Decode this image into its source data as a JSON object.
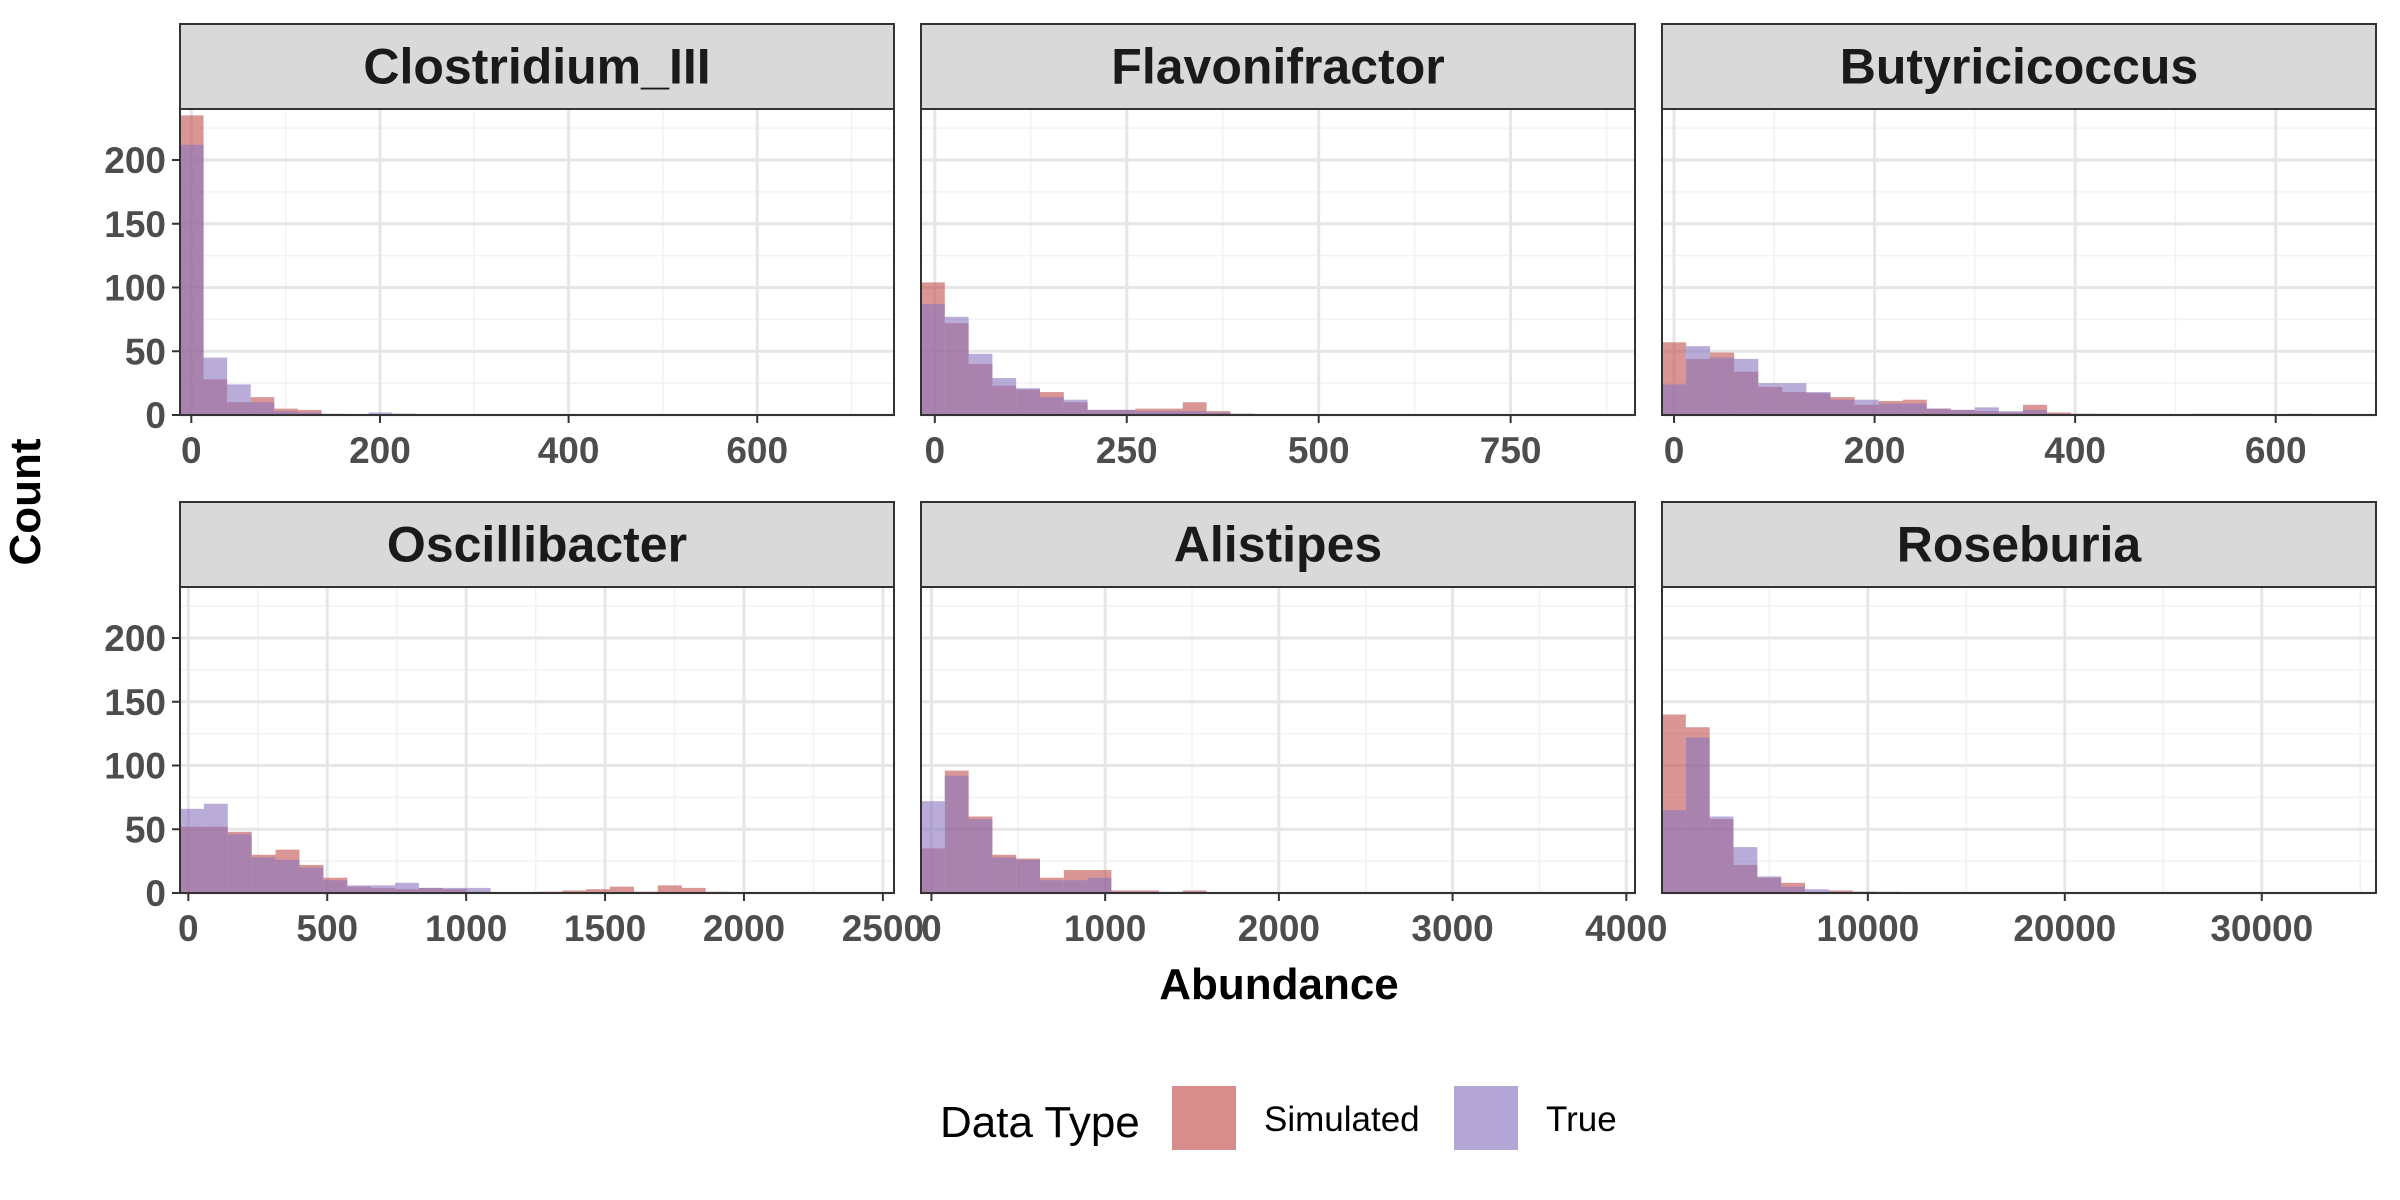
{
  "chart_data": {
    "type": "histogram-facets",
    "ylabel": "Count",
    "xlabel": "Abundance",
    "shared_y": {
      "ylim": [
        0,
        240
      ],
      "ticks": [
        0,
        50,
        100,
        150,
        200
      ]
    },
    "legend": {
      "title": "Data Type",
      "position": "bottom",
      "entries": [
        {
          "name": "Simulated",
          "color": "#c0504d"
        },
        {
          "name": "True",
          "color": "#8a74c0"
        }
      ]
    },
    "overlap_color": "#8a5a8c",
    "panels": [
      {
        "title": "Clostridium_III",
        "xlim": [
          -12,
          745
        ],
        "xticks": [
          0,
          200,
          400,
          600
        ],
        "xtick_labels": [
          "0",
          "200",
          "400",
          "600"
        ],
        "bin_start": -12,
        "bin_width": 25,
        "series": [
          {
            "name": "Simulated",
            "counts": [
              235,
              28,
              10,
              14,
              5,
              4,
              0,
              0,
              0,
              1,
              0
            ]
          },
          {
            "name": "True",
            "counts": [
              212,
              45,
              24,
              10,
              3,
              2,
              1,
              0,
              2,
              1,
              0
            ]
          }
        ]
      },
      {
        "title": "Flavonifractor",
        "xlim": [
          -18,
          912
        ],
        "xticks": [
          0,
          250,
          500,
          750
        ],
        "xtick_labels": [
          "0",
          "250",
          "500",
          "750"
        ],
        "bin_start": -18,
        "bin_width": 31,
        "series": [
          {
            "name": "Simulated",
            "counts": [
              104,
              72,
              40,
              23,
              20,
              18,
              10,
              4,
              4,
              5,
              5,
              10,
              3,
              1,
              0,
              0
            ]
          },
          {
            "name": "True",
            "counts": [
              87,
              77,
              48,
              29,
              21,
              14,
              12,
              4,
              4,
              3,
              3,
              3,
              2,
              1,
              0,
              0
            ]
          }
        ]
      },
      {
        "title": "Butyricicoccus",
        "xlim": [
          -12,
          700
        ],
        "xticks": [
          0,
          200,
          400,
          600
        ],
        "xtick_labels": [
          "0",
          "200",
          "400",
          "600"
        ],
        "bin_start": -12,
        "bin_width": 24,
        "series": [
          {
            "name": "Simulated",
            "counts": [
              57,
              44,
              49,
              34,
              22,
              18,
              17,
              14,
              8,
              11,
              12,
              5,
              4,
              3,
              2,
              8,
              2,
              1,
              0,
              0,
              0,
              0,
              0,
              0,
              0,
              0,
              0,
              0,
              0,
              0
            ]
          },
          {
            "name": "True",
            "counts": [
              24,
              54,
              45,
              44,
              25,
              25,
              18,
              12,
              12,
              9,
              9,
              5,
              4,
              6,
              3,
              4,
              1,
              1,
              1,
              0,
              0,
              0,
              1,
              1,
              0,
              0,
              1,
              0,
              0,
              0
            ]
          }
        ]
      },
      {
        "title": "Oscillibacter",
        "xlim": [
          -30,
          2540
        ],
        "xticks": [
          0,
          500,
          1000,
          1500,
          2000,
          2500
        ],
        "xtick_labels": [
          "0",
          "500",
          "1000",
          "1500",
          "2000",
          "2500"
        ],
        "bin_start": -30,
        "bin_width": 86,
        "series": [
          {
            "name": "Simulated",
            "counts": [
              52,
              52,
              48,
              30,
              34,
              22,
              12,
              5,
              4,
              3,
              4,
              3,
              1,
              0,
              0,
              1,
              2,
              3,
              5,
              1,
              6,
              4,
              1,
              0,
              0,
              0,
              0,
              0,
              0,
              0
            ]
          },
          {
            "name": "True",
            "counts": [
              66,
              70,
              46,
              28,
              26,
              20,
              10,
              6,
              6,
              8,
              4,
              4,
              4,
              0,
              0,
              0,
              0,
              0,
              0,
              0,
              0,
              0,
              0,
              0,
              0,
              0,
              0,
              0,
              0,
              0
            ]
          }
        ]
      },
      {
        "title": "Alistipes",
        "xlim": [
          -60,
          4050
        ],
        "xticks": [
          0,
          1000,
          2000,
          3000,
          4000
        ],
        "xtick_labels": [
          "0",
          "1000",
          "2000",
          "3000",
          "4000"
        ],
        "bin_start": -60,
        "bin_width": 137,
        "series": [
          {
            "name": "Simulated",
            "counts": [
              35,
              96,
              60,
              30,
              27,
              12,
              18,
              18,
              2,
              2,
              0,
              2,
              0,
              0,
              0,
              0,
              0,
              0,
              0,
              0,
              0,
              0,
              0,
              0,
              0,
              0,
              0,
              0,
              0,
              0
            ]
          },
          {
            "name": "True",
            "counts": [
              72,
              92,
              58,
              28,
              26,
              10,
              10,
              12,
              1,
              1,
              1,
              1,
              0,
              0,
              0,
              0,
              0,
              0,
              0,
              0,
              0,
              0,
              0,
              0,
              0,
              0,
              0,
              0,
              0,
              0
            ]
          }
        ]
      },
      {
        "title": "Roseburia",
        "xlim": [
          -450,
          35800
        ],
        "xticks": [
          10000,
          20000,
          30000
        ],
        "xtick_labels": [
          "10000",
          "20000",
          "30000"
        ],
        "bin_start": -450,
        "bin_width": 1210,
        "series": [
          {
            "name": "Simulated",
            "counts": [
              140,
              130,
              58,
              22,
              12,
              8,
              1,
              2,
              1,
              0,
              0,
              0,
              0,
              0,
              0,
              0,
              0,
              0,
              0,
              0,
              0,
              0,
              0,
              0,
              0,
              0,
              0,
              0,
              0,
              0
            ]
          },
          {
            "name": "True",
            "counts": [
              65,
              122,
              60,
              36,
              13,
              5,
              3,
              1,
              1,
              1,
              0,
              0,
              0,
              0,
              0,
              0,
              0,
              0,
              0,
              0,
              0,
              0,
              0,
              0,
              0,
              0,
              0,
              0,
              0,
              0
            ]
          }
        ]
      }
    ]
  }
}
